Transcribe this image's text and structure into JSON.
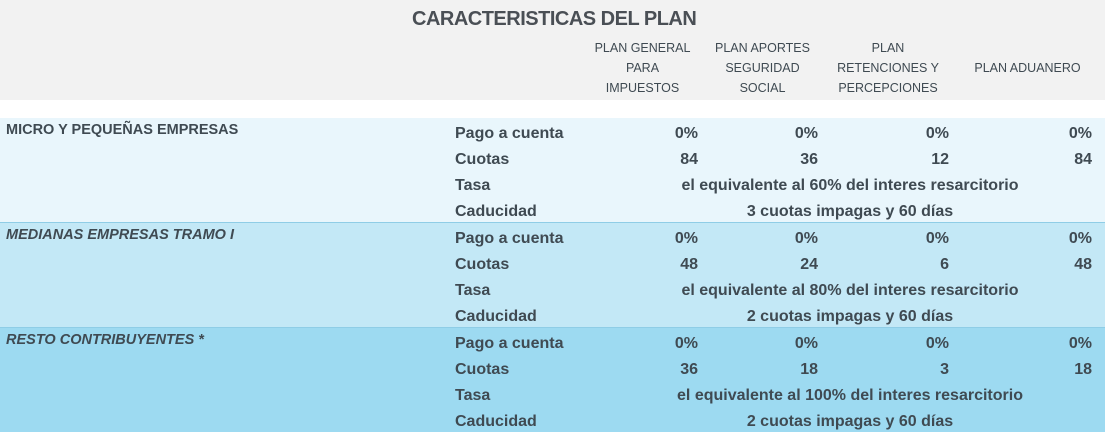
{
  "title": "CARACTERISTICAS DEL PLAN",
  "columns": [
    [
      "PLAN GENERAL",
      "PARA",
      "IMPUESTOS"
    ],
    [
      "PLAN APORTES",
      "SEGURIDAD",
      "SOCIAL"
    ],
    [
      "PLAN",
      "RETENCIONES Y",
      "PERCEPCIONES"
    ],
    [
      "",
      "PLAN ADUANERO",
      ""
    ]
  ],
  "row_labels": [
    "Pago a cuenta",
    "Cuotas",
    "Tasa",
    "Caducidad"
  ],
  "colors": {
    "header": "#f2f2f2",
    "section1": "#e9f6fc",
    "section2": "#c3e8f6",
    "section3": "#9ddaf1"
  },
  "sections": [
    {
      "name": "MICRO Y PEQUEÑAS EMPRESAS",
      "italic": false,
      "pago": [
        "0%",
        "0%",
        "0%",
        "0%"
      ],
      "cuotas": [
        "84",
        "36",
        "12",
        "84"
      ],
      "tasa": "el equivalente al 60% del interes resarcitorio",
      "caducidad": "3 cuotas impagas y 60 días"
    },
    {
      "name": "MEDIANAS EMPRESAS TRAMO I",
      "italic": true,
      "pago": [
        "0%",
        "0%",
        "0%",
        "0%"
      ],
      "cuotas": [
        "48",
        "24",
        "6",
        "48"
      ],
      "tasa": "el equivalente al 80% del interes resarcitorio",
      "caducidad": "2 cuotas impagas y 60 días"
    },
    {
      "name": "RESTO CONTRIBUYENTES *",
      "italic": true,
      "pago": [
        "0%",
        "0%",
        "0%",
        "0%"
      ],
      "cuotas": [
        "36",
        "18",
        "3",
        "18"
      ],
      "tasa": "el equivalente al 100% del interes resarcitorio",
      "caducidad": "2 cuotas impagas y 60 días"
    }
  ]
}
